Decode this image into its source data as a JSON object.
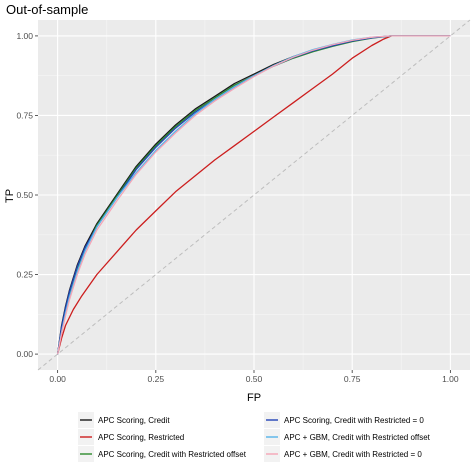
{
  "chart_data": {
    "type": "line",
    "title": "Out-of-sample",
    "xlabel": "FP",
    "ylabel": "TP",
    "xlim": [
      -0.05,
      1.05
    ],
    "ylim": [
      -0.05,
      1.05
    ],
    "xticks": [
      0.0,
      0.25,
      0.5,
      0.75,
      1.0
    ],
    "xtick_labels": [
      "0.00",
      "0.25",
      "0.50",
      "0.75",
      "1.00"
    ],
    "yticks": [
      0.0,
      0.25,
      0.5,
      0.75,
      1.0
    ],
    "ytick_labels": [
      "0.00",
      "0.25",
      "0.50",
      "0.75",
      "1.00"
    ],
    "grid": true,
    "background": "#ebebeb",
    "legend_position": "bottom",
    "diagonal": {
      "from": [
        -0.05,
        -0.05
      ],
      "to": [
        1.05,
        1.05
      ],
      "color": "#bdbdbd",
      "style": "dashed"
    },
    "series": [
      {
        "name": "APC Scoring, Credit",
        "color": "#1a1a1a",
        "points": [
          [
            0,
            0
          ],
          [
            0.01,
            0.09
          ],
          [
            0.02,
            0.15
          ],
          [
            0.03,
            0.2
          ],
          [
            0.05,
            0.28
          ],
          [
            0.07,
            0.34
          ],
          [
            0.1,
            0.41
          ],
          [
            0.15,
            0.5
          ],
          [
            0.2,
            0.59
          ],
          [
            0.25,
            0.66
          ],
          [
            0.3,
            0.72
          ],
          [
            0.35,
            0.77
          ],
          [
            0.4,
            0.81
          ],
          [
            0.45,
            0.85
          ],
          [
            0.5,
            0.88
          ],
          [
            0.55,
            0.91
          ],
          [
            0.6,
            0.935
          ],
          [
            0.65,
            0.955
          ],
          [
            0.7,
            0.97
          ],
          [
            0.75,
            0.985
          ],
          [
            0.8,
            0.995
          ],
          [
            0.85,
            1.0
          ],
          [
            1.0,
            1.0
          ]
        ]
      },
      {
        "name": "APC Scoring, Restricted",
        "color": "#cc1e1e",
        "points": [
          [
            0,
            0
          ],
          [
            0.01,
            0.05
          ],
          [
            0.02,
            0.09
          ],
          [
            0.04,
            0.14
          ],
          [
            0.06,
            0.18
          ],
          [
            0.1,
            0.25
          ],
          [
            0.15,
            0.32
          ],
          [
            0.2,
            0.39
          ],
          [
            0.25,
            0.45
          ],
          [
            0.3,
            0.51
          ],
          [
            0.35,
            0.56
          ],
          [
            0.4,
            0.61
          ],
          [
            0.45,
            0.655
          ],
          [
            0.5,
            0.7
          ],
          [
            0.55,
            0.745
          ],
          [
            0.6,
            0.79
          ],
          [
            0.65,
            0.835
          ],
          [
            0.7,
            0.88
          ],
          [
            0.75,
            0.93
          ],
          [
            0.8,
            0.97
          ],
          [
            0.83,
            0.99
          ],
          [
            0.85,
            1.0
          ],
          [
            1.0,
            1.0
          ]
        ]
      },
      {
        "name": "APC Scoring, Credit with Restricted offset",
        "color": "#2e8b2e",
        "points": [
          [
            0,
            0
          ],
          [
            0.01,
            0.08
          ],
          [
            0.02,
            0.14
          ],
          [
            0.03,
            0.19
          ],
          [
            0.05,
            0.27
          ],
          [
            0.07,
            0.33
          ],
          [
            0.1,
            0.405
          ],
          [
            0.15,
            0.495
          ],
          [
            0.2,
            0.585
          ],
          [
            0.25,
            0.655
          ],
          [
            0.3,
            0.715
          ],
          [
            0.35,
            0.765
          ],
          [
            0.4,
            0.805
          ],
          [
            0.45,
            0.845
          ],
          [
            0.5,
            0.875
          ],
          [
            0.55,
            0.905
          ],
          [
            0.6,
            0.93
          ],
          [
            0.65,
            0.95
          ],
          [
            0.7,
            0.967
          ],
          [
            0.75,
            0.982
          ],
          [
            0.8,
            0.993
          ],
          [
            0.85,
            1.0
          ],
          [
            1.0,
            1.0
          ]
        ]
      },
      {
        "name": "APC Scoring, Credit with Restricted = 0",
        "color": "#2243b6",
        "points": [
          [
            0,
            0
          ],
          [
            0.01,
            0.085
          ],
          [
            0.02,
            0.145
          ],
          [
            0.03,
            0.195
          ],
          [
            0.05,
            0.275
          ],
          [
            0.07,
            0.335
          ],
          [
            0.1,
            0.4
          ],
          [
            0.15,
            0.49
          ],
          [
            0.2,
            0.58
          ],
          [
            0.25,
            0.65
          ],
          [
            0.3,
            0.71
          ],
          [
            0.35,
            0.76
          ],
          [
            0.4,
            0.8
          ],
          [
            0.45,
            0.84
          ],
          [
            0.5,
            0.875
          ],
          [
            0.55,
            0.905
          ],
          [
            0.6,
            0.932
          ],
          [
            0.65,
            0.953
          ],
          [
            0.7,
            0.969
          ],
          [
            0.75,
            0.984
          ],
          [
            0.8,
            0.994
          ],
          [
            0.85,
            1.0
          ],
          [
            1.0,
            1.0
          ]
        ]
      },
      {
        "name": "APC + GBM, Credit with Restricted offset",
        "color": "#56b4e9",
        "points": [
          [
            0,
            0
          ],
          [
            0.01,
            0.07
          ],
          [
            0.02,
            0.13
          ],
          [
            0.03,
            0.18
          ],
          [
            0.05,
            0.26
          ],
          [
            0.07,
            0.325
          ],
          [
            0.1,
            0.4
          ],
          [
            0.15,
            0.49
          ],
          [
            0.2,
            0.57
          ],
          [
            0.25,
            0.64
          ],
          [
            0.3,
            0.7
          ],
          [
            0.35,
            0.755
          ],
          [
            0.4,
            0.8
          ],
          [
            0.45,
            0.84
          ],
          [
            0.5,
            0.875
          ],
          [
            0.55,
            0.907
          ],
          [
            0.6,
            0.935
          ],
          [
            0.65,
            0.957
          ],
          [
            0.7,
            0.973
          ],
          [
            0.75,
            0.987
          ],
          [
            0.8,
            0.996
          ],
          [
            0.85,
            1.0
          ],
          [
            1.0,
            1.0
          ]
        ]
      },
      {
        "name": "APC + GBM, Credit with Restricted = 0",
        "color": "#f4a6b7",
        "points": [
          [
            0,
            0
          ],
          [
            0.01,
            0.065
          ],
          [
            0.02,
            0.12
          ],
          [
            0.03,
            0.17
          ],
          [
            0.05,
            0.25
          ],
          [
            0.07,
            0.315
          ],
          [
            0.1,
            0.39
          ],
          [
            0.15,
            0.48
          ],
          [
            0.2,
            0.565
          ],
          [
            0.25,
            0.635
          ],
          [
            0.3,
            0.695
          ],
          [
            0.35,
            0.75
          ],
          [
            0.4,
            0.795
          ],
          [
            0.45,
            0.835
          ],
          [
            0.5,
            0.872
          ],
          [
            0.55,
            0.905
          ],
          [
            0.6,
            0.933
          ],
          [
            0.65,
            0.955
          ],
          [
            0.7,
            0.972
          ],
          [
            0.75,
            0.986
          ],
          [
            0.8,
            0.996
          ],
          [
            0.85,
            1.0
          ],
          [
            1.0,
            1.0
          ]
        ]
      }
    ]
  }
}
